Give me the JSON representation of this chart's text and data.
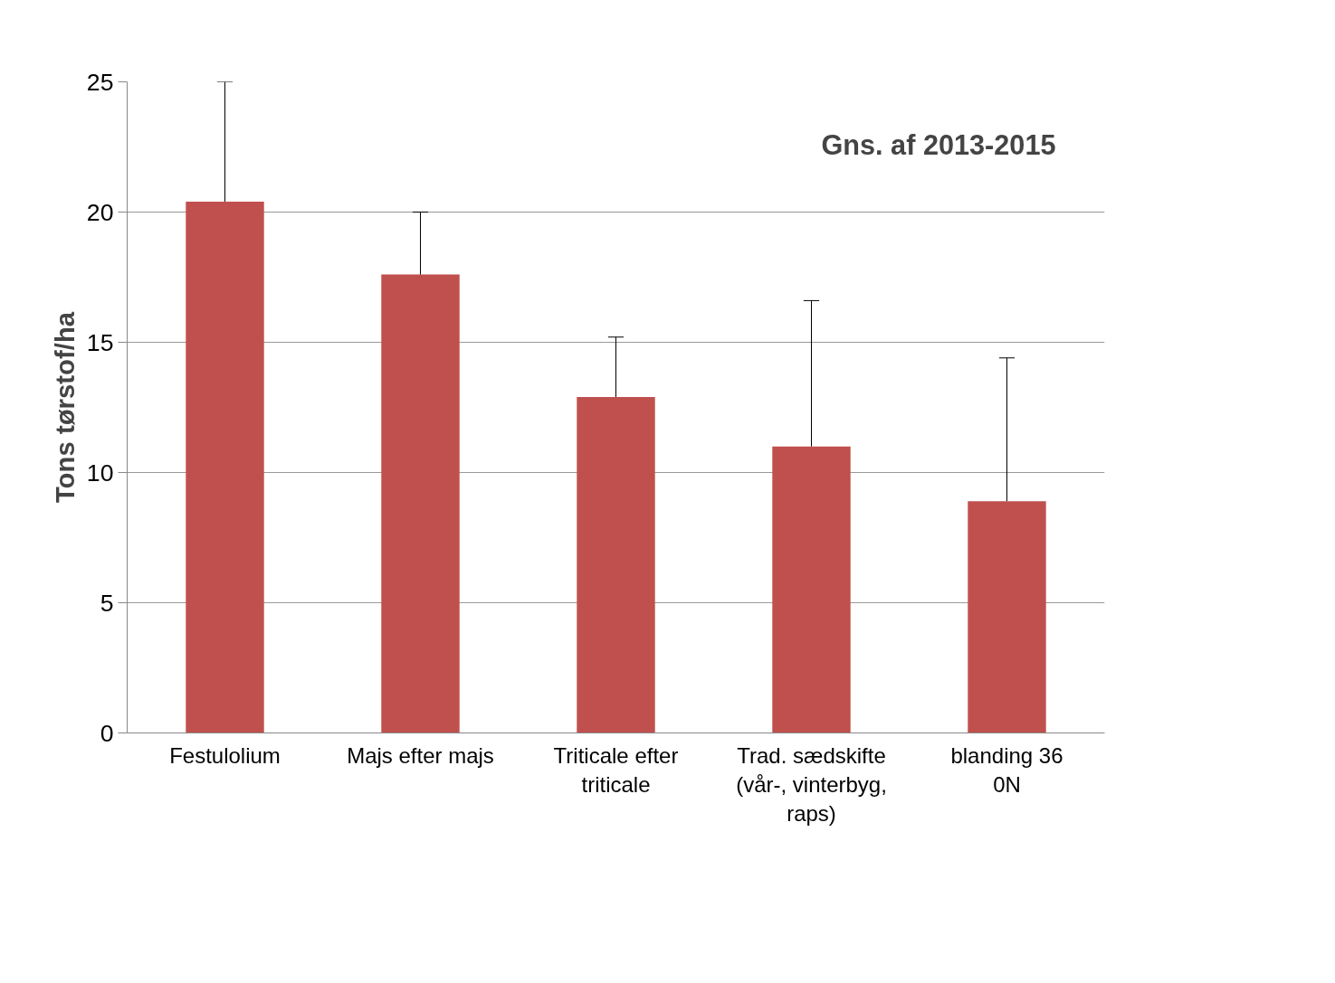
{
  "chart_data": {
    "type": "bar",
    "ylabel": "Tons tørstof/ha",
    "categories": [
      "Festulolium",
      "Majs efter majs",
      "Triticale efter\ntriticale",
      "Trad. sædskifte\n(vår-, vinterbyg,\nraps)",
      "blanding 36\n0N"
    ],
    "values": [
      20.4,
      17.6,
      12.9,
      11.0,
      8.9
    ],
    "errors": [
      [
        20.4,
        25.0
      ],
      [
        17.6,
        20.0
      ],
      [
        12.9,
        15.2
      ],
      [
        11.0,
        16.6
      ],
      [
        8.9,
        14.4
      ]
    ],
    "color": "#c0504d",
    "ylim": [
      0,
      25
    ],
    "yticks": [
      0,
      5,
      10,
      15,
      20,
      25
    ],
    "grid": "y",
    "annotations": [
      "Gns. af 2013-2015"
    ]
  }
}
